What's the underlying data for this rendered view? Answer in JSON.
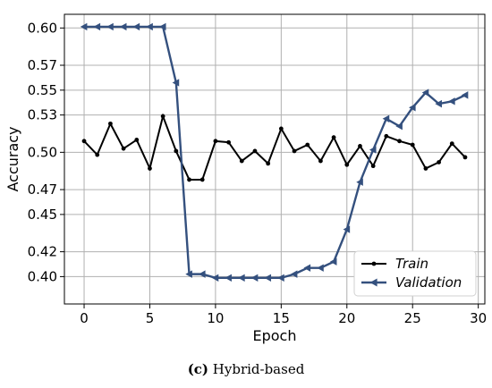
{
  "chart_data": {
    "type": "line",
    "xlabel": "Epoch",
    "ylabel": "Accuracy",
    "xlim": [
      -1.5,
      30.5
    ],
    "ylim": [
      0.378,
      0.611
    ],
    "xticks": [
      0,
      5,
      10,
      15,
      20,
      25,
      30
    ],
    "yticks": [
      0.4,
      0.42,
      0.45,
      0.47,
      0.5,
      0.53,
      0.55,
      0.57,
      0.6
    ],
    "ytick_labels": [
      "0.40",
      "0.42",
      "0.45",
      "0.47",
      "0.50",
      "0.53",
      "0.55",
      "0.57",
      "0.60"
    ],
    "grid": true,
    "legend_position": "lower-right",
    "x": [
      0,
      1,
      2,
      3,
      4,
      5,
      6,
      7,
      8,
      9,
      10,
      11,
      12,
      13,
      14,
      15,
      16,
      17,
      18,
      19,
      20,
      21,
      22,
      23,
      24,
      25,
      26,
      27,
      28,
      29
    ],
    "series": [
      {
        "name": "Train",
        "color": "#000000",
        "marker": "dot",
        "values": [
          0.509,
          0.498,
          0.523,
          0.503,
          0.51,
          0.487,
          0.529,
          0.501,
          0.478,
          0.478,
          0.509,
          0.508,
          0.493,
          0.501,
          0.491,
          0.519,
          0.501,
          0.506,
          0.493,
          0.512,
          0.49,
          0.505,
          0.489,
          0.513,
          0.509,
          0.506,
          0.487,
          0.492,
          0.507,
          0.496
        ]
      },
      {
        "name": "Validation",
        "color": "#34507e",
        "marker": "triangle-left",
        "values": [
          0.601,
          0.601,
          0.601,
          0.601,
          0.601,
          0.601,
          0.601,
          0.556,
          0.402,
          0.402,
          0.399,
          0.399,
          0.399,
          0.399,
          0.399,
          0.399,
          0.402,
          0.407,
          0.407,
          0.412,
          0.438,
          0.476,
          0.502,
          0.527,
          0.521,
          0.536,
          0.548,
          0.539,
          0.541,
          0.546
        ]
      }
    ]
  },
  "caption": {
    "label": "(c)",
    "text": " Hybrid-based"
  }
}
